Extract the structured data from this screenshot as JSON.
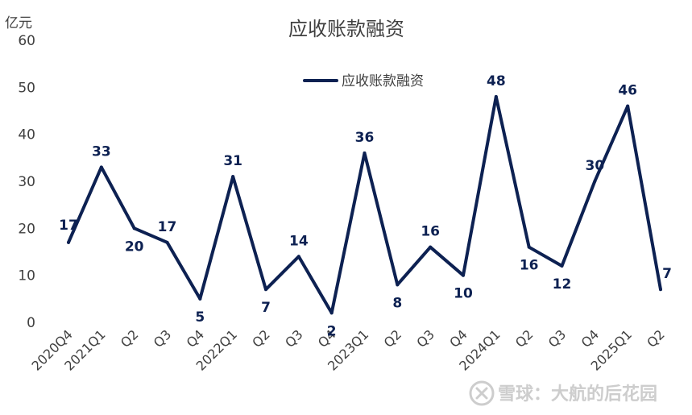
{
  "chart_data": {
    "type": "line",
    "title": "应收账款融资",
    "y_unit_label": "亿元",
    "categories": [
      "2020Q4",
      "2021Q1",
      "Q2",
      "Q3",
      "Q4",
      "2022Q1",
      "Q2",
      "Q3",
      "Q4",
      "2023Q1",
      "Q2",
      "Q3",
      "Q4",
      "2024Q1",
      "Q2",
      "Q3",
      "Q4",
      "2025Q1",
      "Q2"
    ],
    "series": [
      {
        "name": "应收账款融资",
        "values": [
          17,
          33,
          20,
          17,
          5,
          31,
          7,
          14,
          2,
          36,
          8,
          16,
          10,
          48,
          16,
          12,
          30,
          46,
          7
        ],
        "data_labels": [
          "17",
          "33",
          "20",
          "17",
          "5",
          "31",
          "7",
          "14",
          "2",
          "36",
          "8",
          "16",
          "10",
          "48",
          "16",
          "12",
          "30",
          "46",
          "7"
        ],
        "color": "#0d2152"
      }
    ],
    "ylim": [
      0,
      60
    ],
    "yticks": [
      0,
      10,
      20,
      30,
      40,
      50,
      60
    ],
    "grid": false,
    "legend_position": "top-center"
  },
  "watermark": {
    "text": "雪球：大航的后花园",
    "icon": "snowball-logo-icon"
  }
}
